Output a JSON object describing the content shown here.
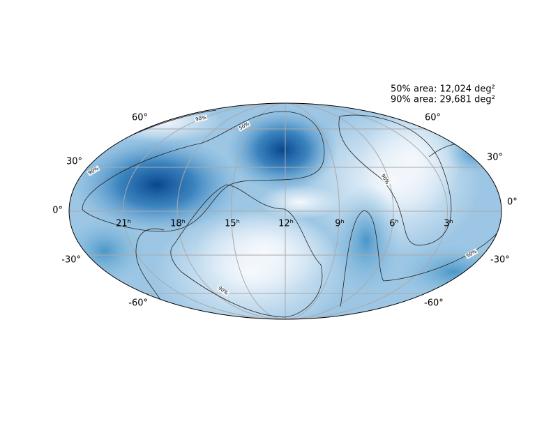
{
  "annotations": {
    "area_50": "50% area: 12,024 deg²",
    "area_90": "90% area: 29,681 deg²"
  },
  "ra_labels": [
    "21ʰ",
    "18ʰ",
    "15ʰ",
    "12ʰ",
    "9ʰ",
    "6ʰ",
    "3ʰ"
  ],
  "dec_labels_left": [
    "60°",
    "30°",
    "0°",
    "-30°",
    "-60°"
  ],
  "dec_labels_right": [
    "60°",
    "30°",
    "0°",
    "-30°",
    "-60°"
  ],
  "contour_labels": [
    "90%",
    "50%",
    "90%",
    "90%",
    "50%",
    "90%"
  ]
}
